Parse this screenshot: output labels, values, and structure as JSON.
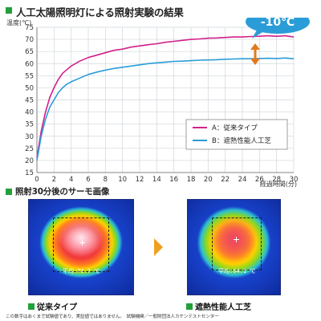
{
  "header": {
    "title": "人工太陽照明灯による照射実験の結果"
  },
  "chart_data": {
    "type": "line",
    "ylabel": "温度(℃)",
    "xlabel": "経過時間(分)",
    "xlim": [
      0,
      30
    ],
    "ylim": [
      15,
      75
    ],
    "xticks": [
      "0",
      "2",
      "4",
      "6",
      "8",
      "10",
      "12",
      "14",
      "16",
      "18",
      "20",
      "22",
      "24",
      "26",
      "28",
      "30"
    ],
    "yticks": [
      "15",
      "20",
      "25",
      "30",
      "35",
      "40",
      "45",
      "50",
      "55",
      "60",
      "65",
      "70",
      "75"
    ],
    "grid": true,
    "legend_position": "right",
    "annotation": "-10℃",
    "series": [
      {
        "name": "A：従来タイプ",
        "color": "#d2208c",
        "x": [
          0,
          0.5,
          1,
          1.5,
          2,
          2.5,
          3,
          3.5,
          4,
          5,
          6,
          7,
          8,
          9,
          10,
          11,
          12,
          13,
          14,
          15,
          16,
          17,
          18,
          19,
          20,
          21,
          22,
          23,
          24,
          25,
          26,
          27,
          28,
          29,
          30
        ],
        "y": [
          21,
          32,
          40,
          46,
          50,
          53.5,
          56,
          57.5,
          59,
          61,
          62.5,
          63.5,
          64.5,
          65.5,
          66,
          66.8,
          67.3,
          67.8,
          68.2,
          68.8,
          69.2,
          69.6,
          70,
          70.2,
          70.5,
          70.6,
          70.8,
          71,
          71,
          71.2,
          71.3,
          71.5,
          71.3,
          71.5,
          71
        ]
      },
      {
        "name": "B：遮熱性能人工芝",
        "color": "#2a9cd8",
        "x": [
          0,
          0.5,
          1,
          1.5,
          2,
          2.5,
          3,
          3.5,
          4,
          5,
          6,
          7,
          8,
          9,
          10,
          11,
          12,
          13,
          14,
          15,
          16,
          17,
          18,
          19,
          20,
          21,
          22,
          23,
          24,
          25,
          26,
          27,
          28,
          29,
          30
        ],
        "y": [
          20,
          30,
          37,
          42,
          45,
          48,
          50,
          51.5,
          52.5,
          54,
          55.5,
          56.5,
          57.3,
          58,
          58.5,
          59,
          59.5,
          60,
          60.3,
          60.6,
          60.9,
          61,
          61.2,
          61.4,
          61.5,
          61.6,
          61.8,
          61.9,
          62,
          62,
          62.1,
          62.2,
          62.1,
          62.3,
          62
        ]
      }
    ]
  },
  "thermo": {
    "title": "照射30分後のサーモ画像",
    "left_avg": "平均:71.7 ℃",
    "right_avg": "平均:64.1 ℃",
    "left_label": "従来タイプ",
    "right_label": "遮熱性能人工芝",
    "arrow_icon": "chevron-right-icon"
  },
  "footer": {
    "note": "この数字はあくまで試験値であり、実証値ではありません。　試験機関／一般財団法人カケンテストセンター"
  },
  "colors": {
    "accent_green": "#22a03a",
    "series_a": "#d2208c",
    "series_b": "#2a9cd8",
    "annotation_bg": "#2a9cd8",
    "arrow": "#f0a020"
  }
}
